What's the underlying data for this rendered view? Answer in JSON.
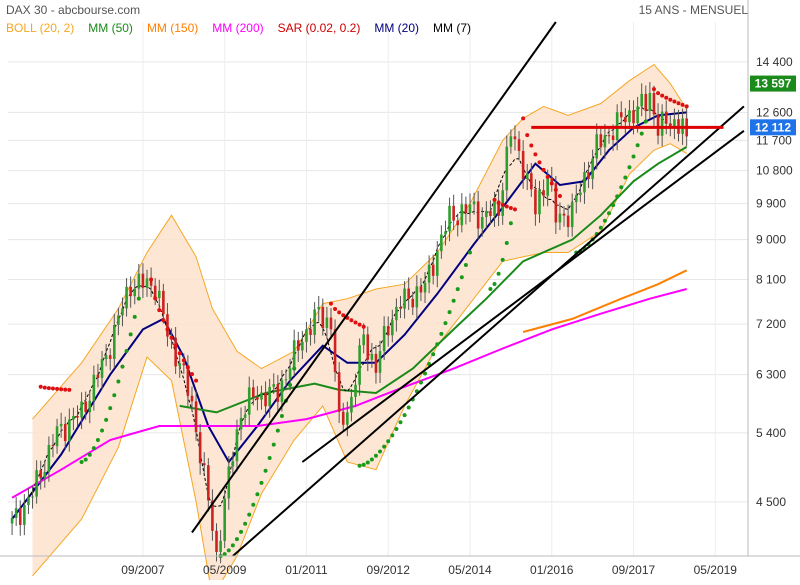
{
  "header": {
    "title": "DAX 30 - abcbourse.com",
    "period": "15 ANS - MENSUEL"
  },
  "legend": [
    {
      "label": "BOLL (20, 2)",
      "color": "#f5a623"
    },
    {
      "label": "MM (50)",
      "color": "#1a8a1a"
    },
    {
      "label": "MM (150)",
      "color": "#ff7f00"
    },
    {
      "label": "MM (200)",
      "color": "#ff00ff"
    },
    {
      "label": "SAR (0.02, 0.2)",
      "color": "#cc0000"
    },
    {
      "label": "MM (20)",
      "color": "#000080"
    },
    {
      "label": "MM (7)",
      "color": "#000000"
    }
  ],
  "price_tags": [
    {
      "label": "13 597",
      "color": "#1a8a1a"
    },
    {
      "label": "12 112",
      "color": "#1e73e8"
    }
  ],
  "chart_data": {
    "type": "candlestick",
    "title": "DAX 30",
    "y_scale": "log",
    "ylim": [
      3900,
      16000
    ],
    "y_ticks": [
      "14 400",
      "12 600",
      "11 700",
      "10 800",
      "9 900",
      "9 000",
      "8 100",
      "7 200",
      "6 300",
      "5 400",
      "4 500"
    ],
    "x_ticks": [
      "09/2007",
      "05/2009",
      "01/2011",
      "09/2012",
      "05/2014",
      "01/2016",
      "09/2017",
      "05/2019"
    ],
    "x_range": [
      "2004-12",
      "2020-01"
    ],
    "price_series": [
      [
        "2005-01",
        4250
      ],
      [
        "2005-06",
        4600
      ],
      [
        "2005-12",
        5400
      ],
      [
        "2006-06",
        5700
      ],
      [
        "2006-12",
        6600
      ],
      [
        "2007-06",
        8000
      ],
      [
        "2007-12",
        8000
      ],
      [
        "2008-03",
        7000
      ],
      [
        "2008-06",
        6500
      ],
      [
        "2008-09",
        5800
      ],
      [
        "2008-12",
        4800
      ],
      [
        "2009-03",
        3900
      ],
      [
        "2009-06",
        4800
      ],
      [
        "2009-09",
        5700
      ],
      [
        "2009-12",
        5950
      ],
      [
        "2010-06",
        6000
      ],
      [
        "2010-12",
        6950
      ],
      [
        "2011-04",
        7400
      ],
      [
        "2011-07",
        7200
      ],
      [
        "2011-09",
        5500
      ],
      [
        "2011-12",
        5900
      ],
      [
        "2012-03",
        6950
      ],
      [
        "2012-06",
        6400
      ],
      [
        "2012-09",
        7200
      ],
      [
        "2012-12",
        7600
      ],
      [
        "2013-06",
        7950
      ],
      [
        "2013-12",
        9550
      ],
      [
        "2014-06",
        9800
      ],
      [
        "2014-08",
        9500
      ],
      [
        "2014-12",
        9800
      ],
      [
        "2015-03",
        11900
      ],
      [
        "2015-06",
        11000
      ],
      [
        "2015-09",
        9700
      ],
      [
        "2015-12",
        10750
      ],
      [
        "2016-02",
        9500
      ],
      [
        "2016-06",
        9700
      ],
      [
        "2016-12",
        11500
      ],
      [
        "2017-06",
        12350
      ],
      [
        "2017-12",
        12900
      ],
      [
        "2018-01",
        13200
      ],
      [
        "2018-03",
        12100
      ],
      [
        "2018-06",
        12300
      ],
      [
        "2018-09",
        12200
      ],
      [
        "2018-10",
        11500
      ]
    ],
    "last_price": 12112,
    "resistance_level": 12112,
    "bollinger_upper": [
      [
        "2005-06",
        5600
      ],
      [
        "2006-06",
        6500
      ],
      [
        "2007-03",
        7500
      ],
      [
        "2007-10",
        8700
      ],
      [
        "2008-04",
        9600
      ],
      [
        "2008-10",
        8600
      ],
      [
        "2009-02",
        7500
      ],
      [
        "2009-08",
        6700
      ],
      [
        "2010-02",
        6400
      ],
      [
        "2010-10",
        6700
      ],
      [
        "2011-05",
        7600
      ],
      [
        "2011-11",
        7700
      ],
      [
        "2012-06",
        7900
      ],
      [
        "2013-01",
        8000
      ],
      [
        "2013-09",
        8700
      ],
      [
        "2014-05",
        9900
      ],
      [
        "2015-01",
        11700
      ],
      [
        "2015-06",
        12400
      ],
      [
        "2015-11",
        12800
      ],
      [
        "2016-05",
        12500
      ],
      [
        "2017-01",
        12900
      ],
      [
        "2017-08",
        13700
      ],
      [
        "2018-02",
        14300
      ],
      [
        "2018-06",
        13600
      ],
      [
        "2018-10",
        12700
      ]
    ],
    "bollinger_lower": [
      [
        "2005-06",
        3700
      ],
      [
        "2006-06",
        4300
      ],
      [
        "2007-03",
        5200
      ],
      [
        "2007-10",
        6600
      ],
      [
        "2008-04",
        6200
      ],
      [
        "2008-10",
        4500
      ],
      [
        "2009-02",
        3500
      ],
      [
        "2009-08",
        3900
      ],
      [
        "2010-02",
        4600
      ],
      [
        "2010-10",
        5300
      ],
      [
        "2011-05",
        5800
      ],
      [
        "2011-11",
        5000
      ],
      [
        "2012-06",
        4900
      ],
      [
        "2013-01",
        5800
      ],
      [
        "2013-09",
        6800
      ],
      [
        "2014-05",
        7600
      ],
      [
        "2015-01",
        8500
      ],
      [
        "2015-06",
        8600
      ],
      [
        "2015-11",
        8700
      ],
      [
        "2016-05",
        8700
      ],
      [
        "2017-01",
        9200
      ],
      [
        "2017-08",
        10700
      ],
      [
        "2018-02",
        11400
      ],
      [
        "2018-06",
        11600
      ],
      [
        "2018-10",
        11300
      ]
    ],
    "series": [
      {
        "name": "MM (20)",
        "color": "#000080",
        "points": [
          [
            "2005-01",
            4300
          ],
          [
            "2006-01",
            5100
          ],
          [
            "2007-01",
            6300
          ],
          [
            "2007-09",
            7100
          ],
          [
            "2008-02",
            7300
          ],
          [
            "2008-07",
            6600
          ],
          [
            "2009-01",
            5500
          ],
          [
            "2009-06",
            5000
          ],
          [
            "2010-01",
            5500
          ],
          [
            "2010-09",
            6200
          ],
          [
            "2011-05",
            6800
          ],
          [
            "2011-11",
            6500
          ],
          [
            "2012-06",
            6500
          ],
          [
            "2013-01",
            7000
          ],
          [
            "2013-09",
            7800
          ],
          [
            "2014-06",
            8900
          ],
          [
            "2015-01",
            9800
          ],
          [
            "2015-09",
            11000
          ],
          [
            "2016-03",
            10400
          ],
          [
            "2016-09",
            10500
          ],
          [
            "2017-03",
            11400
          ],
          [
            "2017-09",
            12100
          ],
          [
            "2018-03",
            12500
          ],
          [
            "2018-10",
            12600
          ]
        ]
      },
      {
        "name": "MM (50)",
        "color": "#1a8a1a",
        "points": [
          [
            "2008-06",
            5800
          ],
          [
            "2009-03",
            5700
          ],
          [
            "2010-03",
            6000
          ],
          [
            "2011-03",
            6150
          ],
          [
            "2011-09",
            6050
          ],
          [
            "2012-06",
            6000
          ],
          [
            "2013-03",
            6400
          ],
          [
            "2014-01",
            7100
          ],
          [
            "2014-09",
            7700
          ],
          [
            "2015-06",
            8500
          ],
          [
            "2016-06",
            9000
          ],
          [
            "2017-01",
            9600
          ],
          [
            "2017-09",
            10500
          ],
          [
            "2018-03",
            11000
          ],
          [
            "2018-10",
            11500
          ]
        ]
      },
      {
        "name": "MM (150)",
        "color": "#ff7f00",
        "points": [
          [
            "2015-06",
            7050
          ],
          [
            "2016-06",
            7300
          ],
          [
            "2017-06",
            7700
          ],
          [
            "2018-03",
            8000
          ],
          [
            "2018-10",
            8300
          ]
        ]
      },
      {
        "name": "MM (200)",
        "color": "#ff00ff",
        "points": [
          [
            "2005-01",
            4550
          ],
          [
            "2006-01",
            4900
          ],
          [
            "2007-01",
            5300
          ],
          [
            "2008-01",
            5500
          ],
          [
            "2009-01",
            5500
          ],
          [
            "2010-01",
            5500
          ],
          [
            "2011-01",
            5600
          ],
          [
            "2012-01",
            5800
          ],
          [
            "2013-01",
            6100
          ],
          [
            "2014-01",
            6400
          ],
          [
            "2015-01",
            6750
          ],
          [
            "2016-01",
            7100
          ],
          [
            "2017-01",
            7400
          ],
          [
            "2018-01",
            7700
          ],
          [
            "2018-10",
            7900
          ]
        ]
      }
    ],
    "trend_lines": [
      {
        "name": "upper-channel",
        "color": "#000000",
        "from": [
          "2008-09",
          4150
        ],
        "to": [
          "2016-02",
          16000
        ]
      },
      {
        "name": "lower-channel",
        "color": "#000000",
        "from": [
          "2009-07",
          3900
        ],
        "to": [
          "2019-12",
          12800
        ]
      },
      {
        "name": "long-support",
        "color": "#000000",
        "from": [
          "2010-12",
          5000
        ],
        "to": [
          "2019-12",
          12000
        ]
      }
    ],
    "sar_segments": [
      {
        "trend": "down",
        "from": [
          "2005-08",
          6100
        ],
        "to": [
          "2006-03",
          6050
        ]
      },
      {
        "trend": "up",
        "from": [
          "2006-06",
          5000
        ],
        "to": [
          "2007-08",
          7700
        ]
      },
      {
        "trend": "down",
        "from": [
          "2007-11",
          8100
        ],
        "to": [
          "2008-10",
          6200
        ]
      },
      {
        "trend": "up",
        "from": [
          "2009-04",
          3900
        ],
        "to": [
          "2010-10",
          6400
        ]
      },
      {
        "trend": "down",
        "from": [
          "2011-07",
          7600
        ],
        "to": [
          "2012-03",
          7150
        ]
      },
      {
        "trend": "up",
        "from": [
          "2012-02",
          4950
        ],
        "to": [
          "2014-05",
          8700
        ]
      },
      {
        "trend": "down",
        "from": [
          "2014-11",
          10000
        ],
        "to": [
          "2015-04",
          9750
        ]
      },
      {
        "trend": "up",
        "from": [
          "2014-10",
          7900
        ],
        "to": [
          "2015-03",
          9400
        ]
      },
      {
        "trend": "down",
        "from": [
          "2015-06",
          12400
        ],
        "to": [
          "2016-03",
          10100
        ]
      },
      {
        "trend": "up",
        "from": [
          "2016-07",
          8700
        ],
        "to": [
          "2017-12",
          12300
        ]
      },
      {
        "trend": "down",
        "from": [
          "2018-02",
          13400
        ],
        "to": [
          "2018-10",
          12800
        ]
      }
    ]
  }
}
